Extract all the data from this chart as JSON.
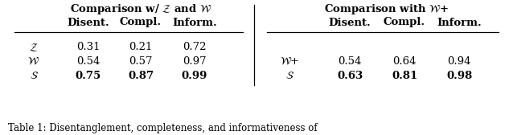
{
  "title_left": "Comparison w/ $\\mathcal{Z}$ and $\\mathcal{W}$",
  "title_right": "Comparison with $\\mathcal{W}$+",
  "col_headers": [
    "Disent.",
    "Compl.",
    "Inform."
  ],
  "left_table": {
    "rows": [
      {
        "label": "$\\mathcal{Z}$",
        "values": [
          "0.31",
          "0.21",
          "0.72"
        ],
        "bold": false
      },
      {
        "label": "$\\mathcal{W}$",
        "values": [
          "0.54",
          "0.57",
          "0.97"
        ],
        "bold": false
      },
      {
        "label": "$\\mathcal{S}$",
        "values": [
          "0.75",
          "0.87",
          "0.99"
        ],
        "bold": true
      }
    ]
  },
  "right_table": {
    "rows": [
      {
        "label": "$\\mathcal{W}$+",
        "values": [
          "0.54",
          "0.64",
          "0.94"
        ],
        "bold": false
      },
      {
        "label": "$\\mathcal{S}$",
        "values": [
          "0.63",
          "0.81",
          "0.98"
        ],
        "bold": true
      }
    ]
  },
  "caption": "Table 1: Disentanglement, completeness, and informativeness of",
  "bg_color": "#ffffff",
  "text_color": "#000000",
  "fontsize": 9.5,
  "caption_fontsize": 8.5
}
